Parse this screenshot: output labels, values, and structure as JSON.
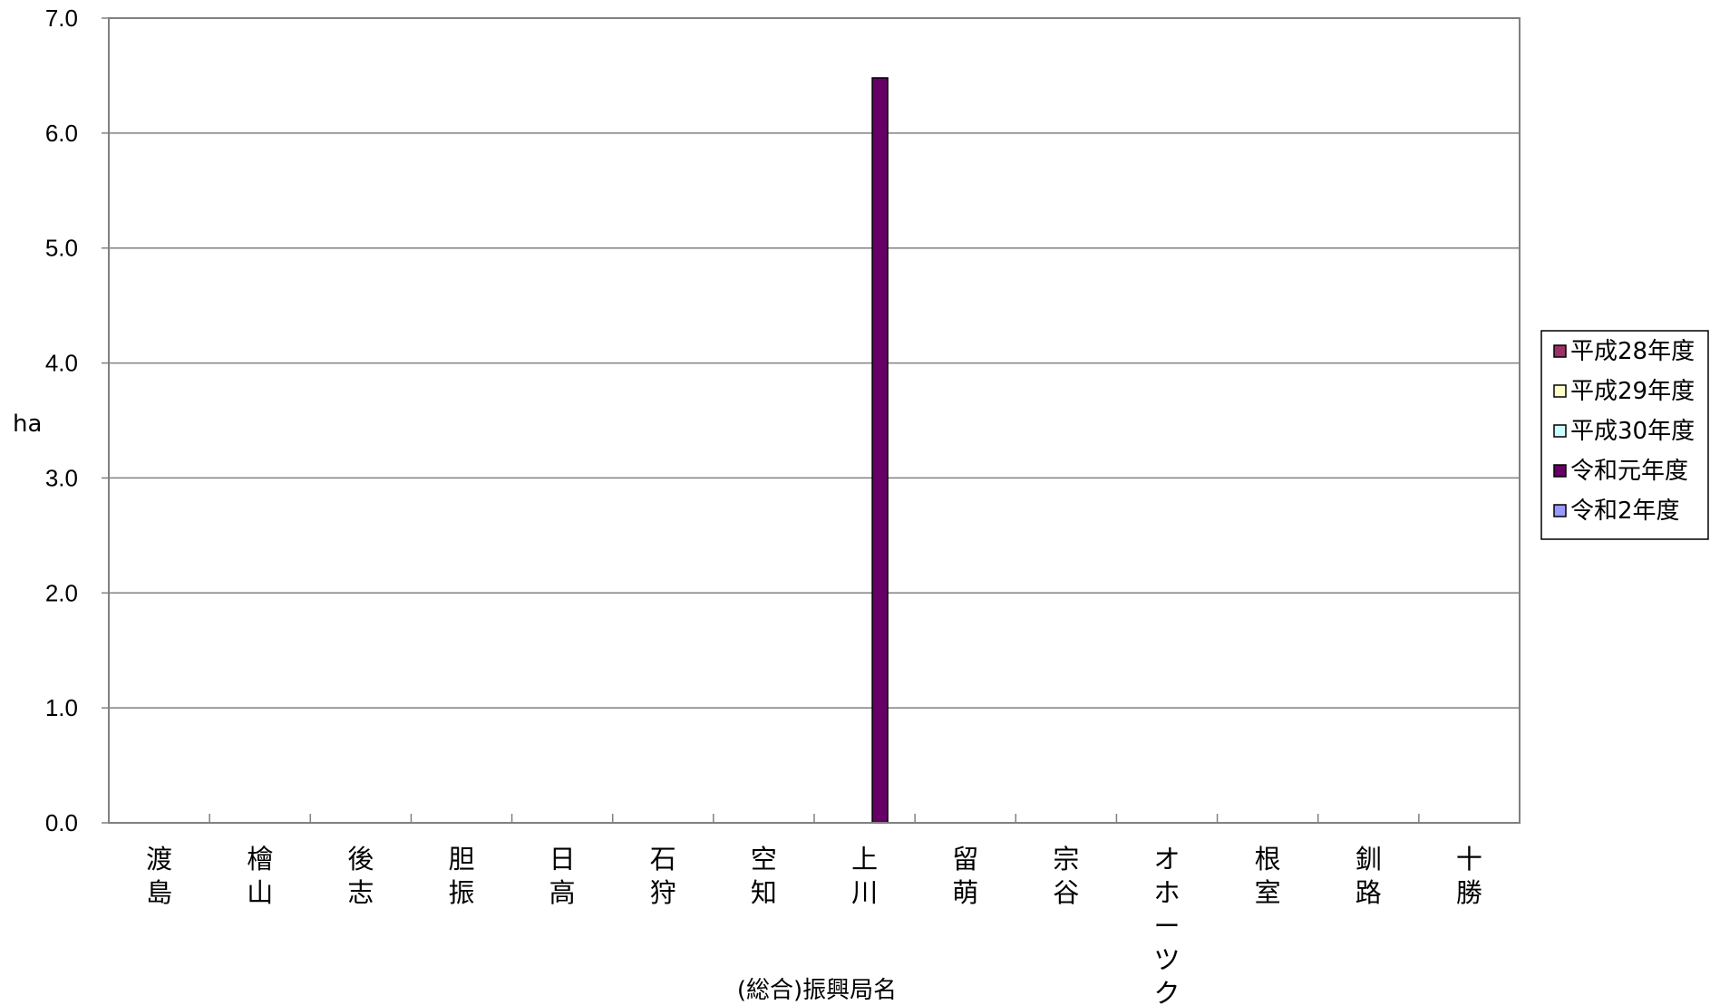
{
  "chart_data": {
    "type": "bar",
    "title": "",
    "xlabel": "(総合)振興局名",
    "ylabel": "ha",
    "ylim": [
      0,
      7
    ],
    "yticks": [
      "0.0",
      "1.0",
      "2.0",
      "3.0",
      "4.0",
      "5.0",
      "6.0",
      "7.0"
    ],
    "grid": true,
    "legend_position": "right",
    "categories": [
      "渡島",
      "檜山",
      "後志",
      "胆振",
      "日高",
      "石狩",
      "空知",
      "上川",
      "留萌",
      "宗谷",
      "オホーツク",
      "根室",
      "釧路",
      "十勝"
    ],
    "series": [
      {
        "name": "平成28年度",
        "color": "#993366",
        "values": [
          0,
          0,
          0,
          0,
          0,
          0,
          0,
          0,
          0,
          0,
          0,
          0,
          0,
          0
        ]
      },
      {
        "name": "平成29年度",
        "color": "#FFFFCC",
        "values": [
          0,
          0,
          0,
          0,
          0,
          0,
          0,
          0,
          0,
          0,
          0,
          0,
          0,
          0
        ]
      },
      {
        "name": "平成30年度",
        "color": "#CCFFFF",
        "values": [
          0,
          0,
          0,
          0,
          0,
          0,
          0,
          0,
          0,
          0,
          0,
          0,
          0,
          0
        ]
      },
      {
        "name": "令和元年度",
        "color": "#660066",
        "values": [
          0,
          0,
          0,
          0,
          0,
          0,
          0,
          6.48,
          0,
          0,
          0,
          0,
          0,
          0
        ]
      },
      {
        "name": "令和2年度",
        "color": "#9999FF",
        "values": [
          0,
          0,
          0,
          0,
          0,
          0,
          0,
          0,
          0,
          0,
          0,
          0,
          0,
          0
        ]
      }
    ]
  }
}
